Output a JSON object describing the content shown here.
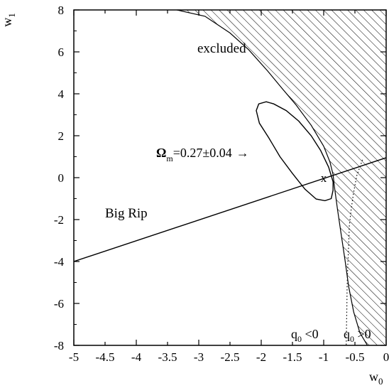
{
  "chart_data": {
    "type": "line",
    "title": "",
    "xlabel": "w0",
    "ylabel": "w1",
    "xlim": [
      -5,
      0
    ],
    "ylim": [
      -8,
      8
    ],
    "grid": false,
    "axes_labels": {
      "x": {
        "base": "w",
        "sub": "0"
      },
      "y": {
        "base": "w",
        "sub": "1"
      }
    },
    "x_ticks": [
      {
        "value": -5,
        "label": "-5"
      },
      {
        "value": -4.5,
        "label": "-4.5"
      },
      {
        "value": -4,
        "label": "-4"
      },
      {
        "value": -3.5,
        "label": "-3.5"
      },
      {
        "value": -3,
        "label": "-3"
      },
      {
        "value": -2.5,
        "label": "-2.5"
      },
      {
        "value": -2,
        "label": "-2"
      },
      {
        "value": -1.5,
        "label": "-1.5"
      },
      {
        "value": -1,
        "label": "-1"
      },
      {
        "value": -0.5,
        "label": "-0.5"
      },
      {
        "value": 0,
        "label": "0"
      }
    ],
    "y_ticks": [
      {
        "value": -8,
        "label": "-8"
      },
      {
        "value": -6,
        "label": "-6"
      },
      {
        "value": -4,
        "label": "-4"
      },
      {
        "value": -2,
        "label": "-2"
      },
      {
        "value": 0,
        "label": "0"
      },
      {
        "value": 2,
        "label": "2"
      },
      {
        "value": 4,
        "label": "4"
      },
      {
        "value": 6,
        "label": "6"
      },
      {
        "value": 8,
        "label": "8"
      }
    ],
    "excluded_boundary": [
      [
        -3.35,
        8.0
      ],
      [
        -2.9,
        7.7
      ],
      [
        -2.5,
        6.9
      ],
      [
        -2.2,
        6.1
      ],
      [
        -1.9,
        5.1
      ],
      [
        -1.65,
        4.2
      ],
      [
        -1.45,
        3.5
      ],
      [
        -1.2,
        2.5
      ],
      [
        -1.0,
        1.5
      ],
      [
        -0.9,
        0.75
      ],
      [
        -0.85,
        0.15
      ],
      [
        -0.83,
        -0.4
      ],
      [
        -0.78,
        -1.5
      ],
      [
        -0.72,
        -2.7
      ],
      [
        -0.66,
        -3.9
      ],
      [
        -0.6,
        -5.2
      ],
      [
        -0.52,
        -6.4
      ],
      [
        -0.42,
        -7.4
      ],
      [
        -0.3,
        -8.0
      ]
    ],
    "big_rip_line": [
      [
        -5.0,
        -4.0
      ],
      [
        0.0,
        0.95
      ]
    ],
    "omega_contour": [
      [
        -1.92,
        3.62
      ],
      [
        -1.8,
        3.52
      ],
      [
        -1.6,
        3.2
      ],
      [
        -1.4,
        2.7
      ],
      [
        -1.2,
        2.0
      ],
      [
        -1.05,
        1.3
      ],
      [
        -0.92,
        0.5
      ],
      [
        -0.85,
        -0.2
      ],
      [
        -0.85,
        -0.6
      ],
      [
        -0.88,
        -1.0
      ],
      [
        -0.98,
        -1.1
      ],
      [
        -1.12,
        -1.02
      ],
      [
        -1.3,
        -0.55
      ],
      [
        -1.5,
        0.2
      ],
      [
        -1.7,
        1.0
      ],
      [
        -1.88,
        1.9
      ],
      [
        -2.03,
        2.6
      ],
      [
        -2.08,
        3.2
      ],
      [
        -2.04,
        3.52
      ],
      [
        -1.92,
        3.62
      ]
    ],
    "q0_dotted": [
      [
        -0.38,
        0.85
      ],
      [
        -0.47,
        0.1
      ],
      [
        -0.52,
        -0.7
      ],
      [
        -0.56,
        -1.5
      ],
      [
        -0.59,
        -2.3
      ],
      [
        -0.6,
        -3.2
      ],
      [
        -0.615,
        -4.2
      ],
      [
        -0.625,
        -5.2
      ],
      [
        -0.63,
        -6.2
      ],
      [
        -0.635,
        -7.2
      ],
      [
        -0.64,
        -8.0
      ]
    ],
    "best_fit_point": {
      "x": -1.0,
      "y": 0.0,
      "label": "x"
    },
    "annotations": {
      "excluded": "excluded",
      "big_rip": "Big Rip",
      "omega": {
        "symbol": "Ω",
        "sub": "m",
        "text": "=0.27±0.04",
        "arrow": "→"
      },
      "q0_neg": {
        "base": "q",
        "sub": "0",
        "text": " <0"
      },
      "q0_pos": {
        "base": "q",
        "sub": "0",
        "text": " >0"
      }
    }
  }
}
